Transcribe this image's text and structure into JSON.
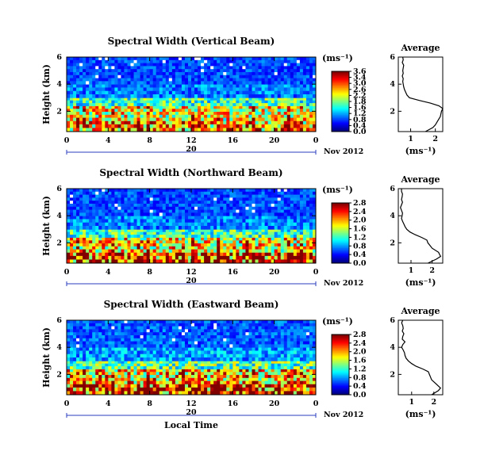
{
  "chart_data": [
    {
      "type": "heatmap",
      "title": "Spectral Width (Vertical Beam)",
      "ylabel": "Height (km)",
      "y_ticks": [
        "2",
        "4",
        "6"
      ],
      "ylim": [
        0.5,
        6
      ],
      "x_ticks": [
        "0",
        "4",
        "8",
        "12",
        "16",
        "20",
        "0"
      ],
      "xlim": [
        0,
        24
      ],
      "date_label": "20",
      "month_label": "Nov 2012",
      "colorbar": {
        "unit": "(ms⁻¹)",
        "ticks": [
          "3.6",
          "3.4",
          "3.0",
          "2.6",
          "2.2",
          "1.8",
          "1.6",
          "1.2",
          "0.8",
          "0.4",
          "0.0"
        ],
        "range": [
          0,
          3.6
        ]
      },
      "average": {
        "title": "Average",
        "xlabel": "(ms⁻¹)",
        "x_ticks": [
          "1",
          "2"
        ],
        "xlim": [
          0.5,
          2.3
        ],
        "y_ticks": [
          "2",
          "4",
          "6"
        ],
        "ylim": [
          0.5,
          6
        ],
        "heights": [
          0.5,
          0.8,
          1.0,
          1.3,
          1.6,
          2.0,
          2.2,
          2.4,
          2.6,
          2.8,
          3.0,
          3.2,
          3.4,
          3.6,
          3.8,
          4.0,
          4.2,
          4.4,
          4.6,
          4.8,
          5.0,
          5.2,
          5.4,
          5.6,
          5.8,
          6.0
        ],
        "values": [
          1.6,
          1.9,
          2.0,
          2.1,
          2.2,
          2.25,
          2.3,
          2.15,
          1.8,
          1.35,
          0.95,
          0.85,
          0.8,
          0.75,
          0.72,
          0.7,
          0.68,
          0.7,
          0.66,
          0.7,
          0.68,
          0.7,
          0.72,
          0.66,
          0.7,
          0.68
        ]
      },
      "profile_bands": [
        {
          "h": [
            0.5,
            1.3
          ],
          "value": 2.6
        },
        {
          "h": [
            1.3,
            2.4
          ],
          "value": 2.2
        },
        {
          "h": [
            2.4,
            3.0
          ],
          "value": 1.6
        },
        {
          "h": [
            3.0,
            4.0
          ],
          "value": 0.9
        },
        {
          "h": [
            4.0,
            6.0
          ],
          "value": 0.7
        }
      ]
    },
    {
      "type": "heatmap",
      "title": "Spectral Width (Northward Beam)",
      "ylabel": "Height (km)",
      "y_ticks": [
        "2",
        "4",
        "6"
      ],
      "ylim": [
        0.5,
        6
      ],
      "x_ticks": [
        "0",
        "4",
        "8",
        "12",
        "16",
        "20",
        "0"
      ],
      "xlim": [
        0,
        24
      ],
      "date_label": "20",
      "month_label": "Nov 2012",
      "colorbar": {
        "unit": "(ms⁻¹)",
        "ticks": [
          "2.8",
          "2.4",
          "2.0",
          "1.6",
          "1.2",
          "0.8",
          "0.4",
          "0.0"
        ],
        "range": [
          0,
          2.8
        ]
      },
      "average": {
        "title": "Average",
        "xlabel": "(ms⁻¹)",
        "x_ticks": [
          "1",
          "2"
        ],
        "xlim": [
          0.4,
          2.5
        ],
        "y_ticks": [
          "2",
          "4",
          "6"
        ],
        "ylim": [
          0.5,
          6
        ],
        "heights": [
          0.5,
          0.8,
          1.0,
          1.3,
          1.6,
          2.0,
          2.2,
          2.4,
          2.6,
          2.8,
          3.0,
          3.2,
          3.4,
          3.6,
          3.8,
          4.0,
          4.2,
          4.4,
          4.6,
          4.8,
          5.0,
          5.2,
          5.4,
          5.6,
          5.8,
          6.0
        ],
        "values": [
          1.8,
          2.2,
          2.4,
          2.3,
          2.0,
          1.8,
          1.75,
          1.5,
          1.2,
          0.95,
          0.8,
          0.72,
          0.66,
          0.6,
          0.55,
          0.58,
          0.6,
          0.55,
          0.5,
          0.55,
          0.6,
          0.55,
          0.58,
          0.6,
          0.55,
          0.55
        ]
      },
      "profile_bands": [
        {
          "h": [
            0.5,
            1.3
          ],
          "value": 2.3
        },
        {
          "h": [
            1.3,
            2.4
          ],
          "value": 1.8
        },
        {
          "h": [
            2.4,
            3.0
          ],
          "value": 1.2
        },
        {
          "h": [
            3.0,
            4.0
          ],
          "value": 0.7
        },
        {
          "h": [
            4.0,
            6.0
          ],
          "value": 0.55
        }
      ]
    },
    {
      "type": "heatmap",
      "title": "Spectral Width (Eastward Beam)",
      "ylabel": "Height (km)",
      "y_ticks": [
        "2",
        "4",
        "6"
      ],
      "ylim": [
        0.5,
        6
      ],
      "x_ticks": [
        "0",
        "4",
        "8",
        "12",
        "16",
        "20",
        "0"
      ],
      "xlim": [
        0,
        24
      ],
      "date_label": "20",
      "month_label": "Nov 2012",
      "xlabel": "Local Time",
      "colorbar": {
        "unit": "(ms⁻¹)",
        "ticks": [
          "2.8",
          "2.4",
          "2.0",
          "1.6",
          "1.2",
          "0.8",
          "0.4",
          "0.0"
        ],
        "range": [
          0,
          2.8
        ]
      },
      "average": {
        "title": "Average",
        "xlabel": "(ms⁻¹)",
        "x_ticks": [
          "1",
          "2"
        ],
        "xlim": [
          0.4,
          2.4
        ],
        "y_ticks": [
          "2",
          "4",
          "6"
        ],
        "ylim": [
          0.5,
          6
        ],
        "heights": [
          0.5,
          0.8,
          1.0,
          1.3,
          1.6,
          2.0,
          2.2,
          2.4,
          2.6,
          2.8,
          3.0,
          3.2,
          3.4,
          3.6,
          3.8,
          4.0,
          4.2,
          4.4,
          4.6,
          4.8,
          5.0,
          5.2,
          5.4,
          5.6,
          5.8,
          6.0
        ],
        "values": [
          1.9,
          2.2,
          2.3,
          2.1,
          1.9,
          1.8,
          1.75,
          1.5,
          1.2,
          1.0,
          0.85,
          0.75,
          0.7,
          0.68,
          0.62,
          0.55,
          0.6,
          0.7,
          0.58,
          0.6,
          0.65,
          0.58,
          0.62,
          0.6,
          0.55,
          0.6
        ]
      },
      "profile_bands": [
        {
          "h": [
            0.5,
            1.3
          ],
          "value": 2.4
        },
        {
          "h": [
            1.3,
            2.4
          ],
          "value": 1.9
        },
        {
          "h": [
            2.4,
            3.0
          ],
          "value": 1.3
        },
        {
          "h": [
            3.0,
            4.0
          ],
          "value": 0.8
        },
        {
          "h": [
            4.0,
            6.0
          ],
          "value": 0.6
        }
      ]
    }
  ]
}
